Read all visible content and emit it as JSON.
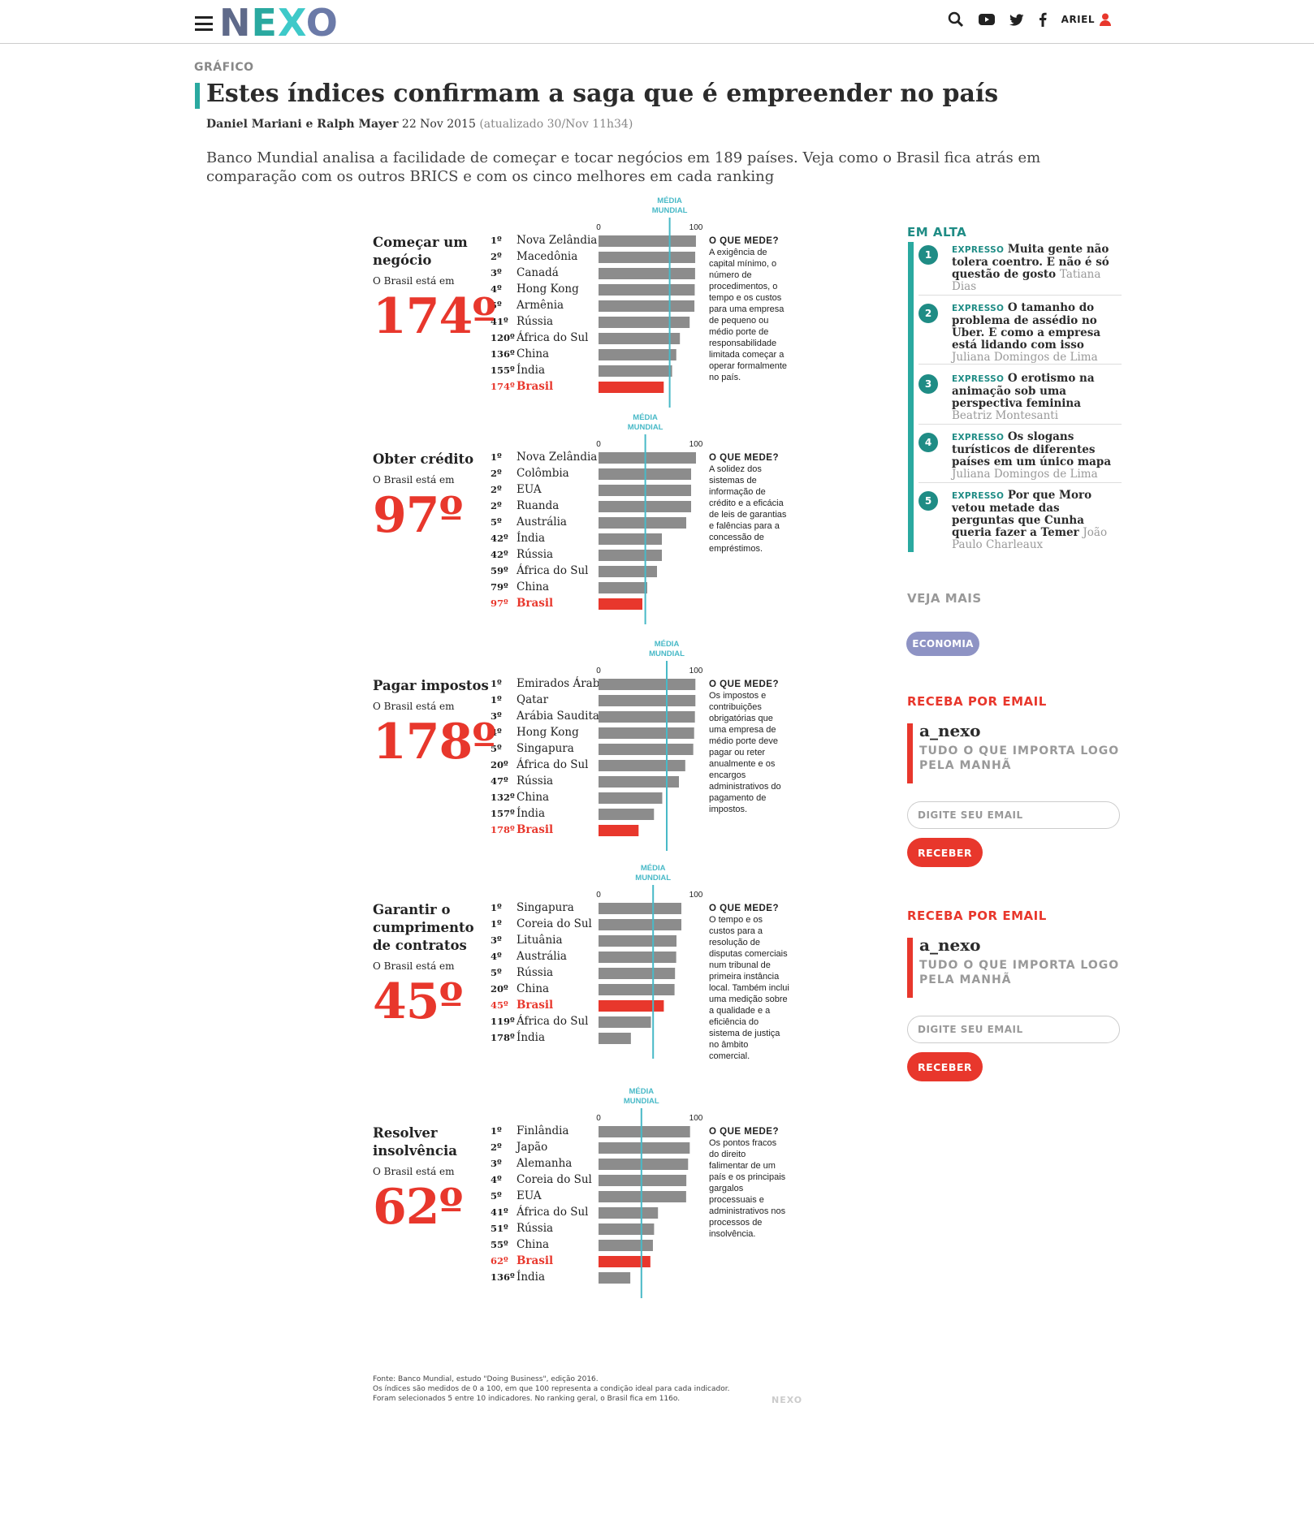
{
  "header": {
    "logo": [
      "N",
      "E",
      "X",
      "O"
    ],
    "user": "ARIEL"
  },
  "article": {
    "kicker": "GRÁFICO",
    "title": "Estes índices confirmam a saga que é empreender no país",
    "authors": "Daniel Mariani e Ralph Mayer",
    "date": "22 Nov 2015",
    "updated": "(atualizado 30/Nov 11h34)",
    "lead": "Banco Mundial analisa a facilidade de começar e tocar negócios em 189 países. Veja como o Brasil fica atrás em comparação com os outros BRICS e com os cinco melhores em cada ranking"
  },
  "chart_data": {
    "type": "bar",
    "orientation": "horizontal",
    "xlim": [
      0,
      100
    ],
    "axis_min_label": "0",
    "axis_max_label": "100",
    "avg_label": [
      "MÉDIA",
      "MUNDIAL"
    ],
    "measures_label": "O QUE MEDE?",
    "rank_intro": "O Brasil está em",
    "highlight_color": "#e8372c",
    "bar_color": "#8c8c8c",
    "avg_color": "#48b9c7",
    "panels": [
      {
        "title": [
          "Começar um",
          "negócio"
        ],
        "brazil_rank": "174º",
        "world_avg": 73,
        "measures": [
          "A exigência de",
          "capital mínimo, o",
          "número de",
          "procedimentos, o",
          "tempo e os custos",
          "para uma empresa",
          "de pequeno ou",
          "médio porte de",
          "responsabilidade",
          "limitada começar a",
          "operar formalmente",
          "no país."
        ],
        "rows": [
          {
            "rank": "1º",
            "country": "Nova Zelândia",
            "value": 99.96
          },
          {
            "rank": "2º",
            "country": "Macedônia",
            "value": 99.2
          },
          {
            "rank": "3º",
            "country": "Canadá",
            "value": 99.1
          },
          {
            "rank": "4º",
            "country": "Hong Kong",
            "value": 98.7
          },
          {
            "rank": "5º",
            "country": "Armênia",
            "value": 98.4
          },
          {
            "rank": "41º",
            "country": "Rússia",
            "value": 93.5
          },
          {
            "rank": "120º",
            "country": "África do Sul",
            "value": 83.5
          },
          {
            "rank": "136º",
            "country": "China",
            "value": 79.8
          },
          {
            "rank": "155º",
            "country": "Índia",
            "value": 75.5
          },
          {
            "rank": "174º",
            "country": "Brasil",
            "value": 66.9,
            "highlight": true
          }
        ]
      },
      {
        "title": [
          "Obter crédito"
        ],
        "brazil_rank": "97º",
        "world_avg": 48,
        "measures": [
          "A solidez dos",
          "sistemas de",
          "informação de",
          "crédito e a eficácia",
          "de leis de garantias",
          "e falências para a",
          "concessão de",
          "empréstimos."
        ],
        "rows": [
          {
            "rank": "1º",
            "country": "Nova Zelândia",
            "value": 100
          },
          {
            "rank": "2º",
            "country": "Colômbia",
            "value": 95
          },
          {
            "rank": "2º",
            "country": "EUA",
            "value": 95
          },
          {
            "rank": "2º",
            "country": "Ruanda",
            "value": 95
          },
          {
            "rank": "5º",
            "country": "Austrália",
            "value": 90
          },
          {
            "rank": "42º",
            "country": "Índia",
            "value": 65
          },
          {
            "rank": "42º",
            "country": "Rússia",
            "value": 65
          },
          {
            "rank": "59º",
            "country": "África do Sul",
            "value": 60
          },
          {
            "rank": "79º",
            "country": "China",
            "value": 50
          },
          {
            "rank": "97º",
            "country": "Brasil",
            "value": 45,
            "highlight": true
          }
        ]
      },
      {
        "title": [
          "Pagar impostos"
        ],
        "brazil_rank": "178º",
        "world_avg": 70,
        "measures": [
          "Os impostos e",
          "contribuições",
          "obrigatórias que",
          "uma empresa de",
          "médio porte deve",
          "pagar ou reter",
          "anualmente e os",
          "encargos",
          "administrativos do",
          "pagamento de",
          "impostos."
        ],
        "rows": [
          {
            "rank": "1º",
            "country": "Emirados Árabes",
            "value": 99.4
          },
          {
            "rank": "1º",
            "country": "Qatar",
            "value": 99.4
          },
          {
            "rank": "3º",
            "country": "Arábia Saudita",
            "value": 98.9
          },
          {
            "rank": "4º",
            "country": "Hong Kong",
            "value": 98.1
          },
          {
            "rank": "5º",
            "country": "Singapura",
            "value": 97.2
          },
          {
            "rank": "20º",
            "country": "África do Sul",
            "value": 89
          },
          {
            "rank": "47º",
            "country": "Rússia",
            "value": 82.5
          },
          {
            "rank": "132º",
            "country": "China",
            "value": 65.4
          },
          {
            "rank": "157º",
            "country": "Índia",
            "value": 56.9
          },
          {
            "rank": "178º",
            "country": "Brasil",
            "value": 41.1,
            "highlight": true
          }
        ]
      },
      {
        "title": [
          "Garantir o",
          "cumprimento",
          "de contratos"
        ],
        "brazil_rank": "45º",
        "world_avg": 56,
        "measures": [
          "O tempo e os",
          "custos para a",
          "resolução de",
          "disputas comerciais",
          "num tribunal de",
          "primeira instância",
          "local. Também inclui",
          "uma medição sobre",
          "a qualidade e a",
          "eficiência do",
          "sistema de justiça",
          "no âmbito",
          "comercial."
        ],
        "rows": [
          {
            "rank": "1º",
            "country": "Singapura",
            "value": 85
          },
          {
            "rank": "1º",
            "country": "Coreia do Sul",
            "value": 85
          },
          {
            "rank": "3º",
            "country": "Lituânia",
            "value": 80
          },
          {
            "rank": "4º",
            "country": "Austrália",
            "value": 79.7
          },
          {
            "rank": "5º",
            "country": "Rússia",
            "value": 78.5
          },
          {
            "rank": "20º",
            "country": "China",
            "value": 78
          },
          {
            "rank": "45º",
            "country": "Brasil",
            "value": 67,
            "highlight": true
          },
          {
            "rank": "119º",
            "country": "África do Sul",
            "value": 53.8
          },
          {
            "rank": "178º",
            "country": "Índia",
            "value": 33.2
          }
        ]
      },
      {
        "title": [
          "Resolver",
          "insolvência"
        ],
        "brazil_rank": "62º",
        "world_avg": 44,
        "measures": [
          "Os pontos fracos",
          "do direito",
          "falimentar de um",
          "país e os principais",
          "gargalos",
          "processuais e",
          "administrativos nos",
          "processos de",
          "insolvência."
        ],
        "rows": [
          {
            "rank": "1º",
            "country": "Finlândia",
            "value": 93.9
          },
          {
            "rank": "2º",
            "country": "Japão",
            "value": 93.6
          },
          {
            "rank": "3º",
            "country": "Alemanha",
            "value": 91.9
          },
          {
            "rank": "4º",
            "country": "Coreia do Sul",
            "value": 90.1
          },
          {
            "rank": "5º",
            "country": "EUA",
            "value": 89.9
          },
          {
            "rank": "41º",
            "country": "África do Sul",
            "value": 61
          },
          {
            "rank": "51º",
            "country": "Rússia",
            "value": 57
          },
          {
            "rank": "55º",
            "country": "China",
            "value": 55.8
          },
          {
            "rank": "62º",
            "country": "Brasil",
            "value": 53.2,
            "highlight": true
          },
          {
            "rank": "136º",
            "country": "Índia",
            "value": 32.6
          }
        ]
      }
    ]
  },
  "source": [
    "Fonte: Banco Mundial, estudo \"Doing Business\", edição 2016.",
    "Os índices são medidos de 0 a 100, em que 100 representa a condição ideal para cada indicador.",
    "Foram selecionados 5 entre 10 indicadores. No ranking geral, o Brasil fica em 116o."
  ],
  "watermark": "NEXO",
  "sidebar": {
    "trending_title": "EM ALTA",
    "trending": [
      {
        "num": "1",
        "tag": "EXPRESSO",
        "headline": "Muita gente não tolera coentro. E não é só questão de gosto",
        "author": "Tatiana Dias"
      },
      {
        "num": "2",
        "tag": "EXPRESSO",
        "headline": "O tamanho do problema de assédio no Uber. E como a empresa está lidando com isso",
        "author": "Juliana Domingos de Lima"
      },
      {
        "num": "3",
        "tag": "EXPRESSO",
        "headline": "O erotismo na animação sob uma perspectiva feminina",
        "author": "Beatriz Montesanti"
      },
      {
        "num": "4",
        "tag": "EXPRESSO",
        "headline": "Os slogans turísticos de diferentes países em um único mapa",
        "author": "Juliana Domingos de Lima"
      },
      {
        "num": "5",
        "tag": "EXPRESSO",
        "headline": "Por que Moro vetou metade das perguntas que Cunha queria fazer a Temer",
        "author": "João Paulo Charleaux"
      }
    ],
    "see_more_title": "VEJA MAIS",
    "see_more_tag": "ECONOMIA",
    "newsletters": [
      {
        "title": "RECEBA POR EMAIL",
        "name": "a_nexo",
        "tagline": [
          "TUDO O QUE IMPORTA LOGO",
          "PELA MANHÃ"
        ],
        "placeholder": "DIGITE SEU EMAIL",
        "button": "RECEBER"
      },
      {
        "title": "RECEBA POR EMAIL",
        "name": "a_nexo",
        "tagline": [
          "TUDO O QUE IMPORTA LOGO",
          "PELA MANHÃ"
        ],
        "placeholder": "DIGITE SEU EMAIL",
        "button": "RECEBER"
      }
    ]
  }
}
